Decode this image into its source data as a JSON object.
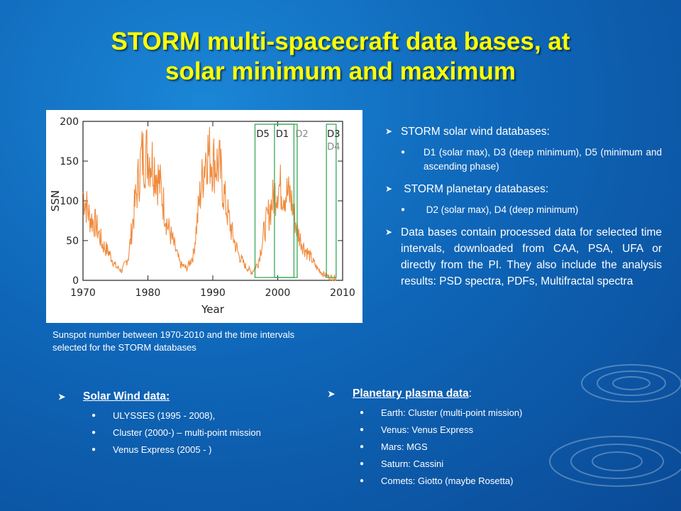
{
  "title": {
    "line1": "STORM multi-spacecraft data bases, at",
    "line2": "solar minimum and maximum"
  },
  "colors": {
    "title": "#ffff00",
    "series": "#f08a3c",
    "interval_box": "#3aa85a"
  },
  "chart_data": {
    "type": "line",
    "xlabel": "Year",
    "ylabel": "SSN",
    "xlim": [
      1970,
      2010
    ],
    "ylim": [
      0,
      200
    ],
    "x_ticks": [
      "1970",
      "1980",
      "1990",
      "2000",
      "2010"
    ],
    "y_ticks": [
      "0",
      "50",
      "100",
      "150",
      "200"
    ],
    "series": [
      {
        "x": [
          1970,
          1971,
          1972,
          1973,
          1974,
          1975,
          1976,
          1977,
          1978,
          1979,
          1980,
          1981,
          1982,
          1983,
          1984,
          1985,
          1986,
          1987,
          1988,
          1989,
          1990,
          1991,
          1992,
          1993,
          1994,
          1995,
          1996,
          1997,
          1998,
          1999,
          2000,
          2001,
          2002,
          2003,
          2004,
          2005,
          2006,
          2007,
          2008,
          2009
        ],
        "values": [
          110,
          80,
          70,
          45,
          35,
          18,
          12,
          30,
          95,
          155,
          160,
          145,
          115,
          70,
          45,
          20,
          15,
          32,
          105,
          165,
          150,
          145,
          95,
          58,
          32,
          18,
          10,
          22,
          65,
          95,
          120,
          112,
          105,
          62,
          42,
          30,
          16,
          8,
          4,
          3
        ]
      }
    ],
    "intervals": [
      {
        "label": "D5",
        "x_start": 1996.5,
        "x_end": 2003.0
      },
      {
        "label": "D1",
        "x_start": 1999.5,
        "x_end": 2002.5
      },
      {
        "label": "D2",
        "x_start": 2002.5,
        "x_end": 2003.0
      },
      {
        "label": "D3",
        "x_start": 2007.5,
        "x_end": 2009.0
      },
      {
        "label": "D4",
        "x_start": 2007.5,
        "x_end": 2009.0
      }
    ]
  },
  "caption": "Sunspot number between 1970-2010 and the time intervals selected for the STORM databases",
  "right_list": {
    "item1": "STORM solar wind databases:",
    "item1_sub": "D1 (solar max), D3 (deep minimum), D5 (minimum and ascending phase)",
    "item2": " STORM planetary databases:",
    "item2_sub": " D2 (solar max), D4 (deep minimum)",
    "item3": "Data bases contain processed data for selected time intervals, downloaded from CAA, PSA, UFA or directly from the PI. They also include the analysis results: PSD spectra, PDFs, Multifractal spectra"
  },
  "solar_wind": {
    "heading": "Solar Wind data:",
    "items": [
      "ULYSSES (1995 - 2008),",
      "Cluster (2000-) – multi-point mission",
      "Venus Express (2005 - )"
    ]
  },
  "planetary": {
    "heading": "Planetary plasma data",
    "heading_suffix": ":",
    "items": [
      "Earth: Cluster (multi-point mission)",
      "Venus: Venus Express",
      "Mars: MGS",
      "Saturn: Cassini",
      "Comets: Giotto (maybe Rosetta)"
    ]
  },
  "icons": {
    "arrow": "arrowhead-bullet-icon",
    "dot": "round-bullet-icon"
  }
}
